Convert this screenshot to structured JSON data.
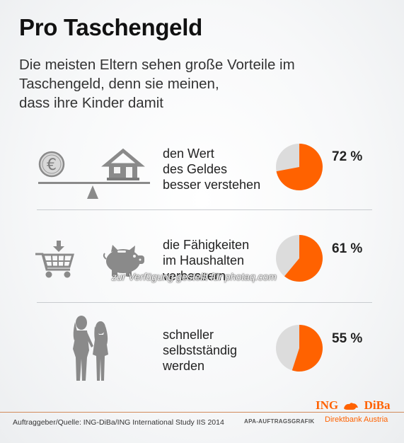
{
  "title": "Pro Taschengeld",
  "subtitle": {
    "line1": "Die meisten Eltern sehen große Vorteile im",
    "line2": "Taschengeld, denn sie meinen,",
    "line3": "dass ihre Kinder damit"
  },
  "chart_data": {
    "type": "pie",
    "items": [
      {
        "lines": [
          "den Wert",
          "des Geldes",
          "besser verstehen"
        ],
        "value": 72,
        "label": "72 %"
      },
      {
        "lines": [
          "die Fähigkeiten",
          "im Haushalten",
          "verbessern"
        ],
        "value": 61,
        "label": "61 %"
      },
      {
        "lines": [
          "schneller",
          "selbstständig",
          "werden"
        ],
        "value": 55,
        "label": "55 %"
      }
    ],
    "colors": {
      "value": "#ff6200",
      "rest": "#dcdcdc"
    }
  },
  "icons": [
    "euro-coin-icon",
    "house-icon",
    "scale-icon",
    "shopping-cart-icon",
    "piggy-bank-icon",
    "mother-daughter-icon"
  ],
  "watermark": "zur Verfügung gestellt für photaq.com",
  "footer": {
    "source": "Auftraggeber/Quelle: ING-DiBa/ING International Study IIS 2014",
    "apa": "APA-AUFTRAGSGRAFIK",
    "brand_ing": "ING",
    "brand_diba": "DiBa",
    "brand_sub": "Direktbank Austria"
  }
}
